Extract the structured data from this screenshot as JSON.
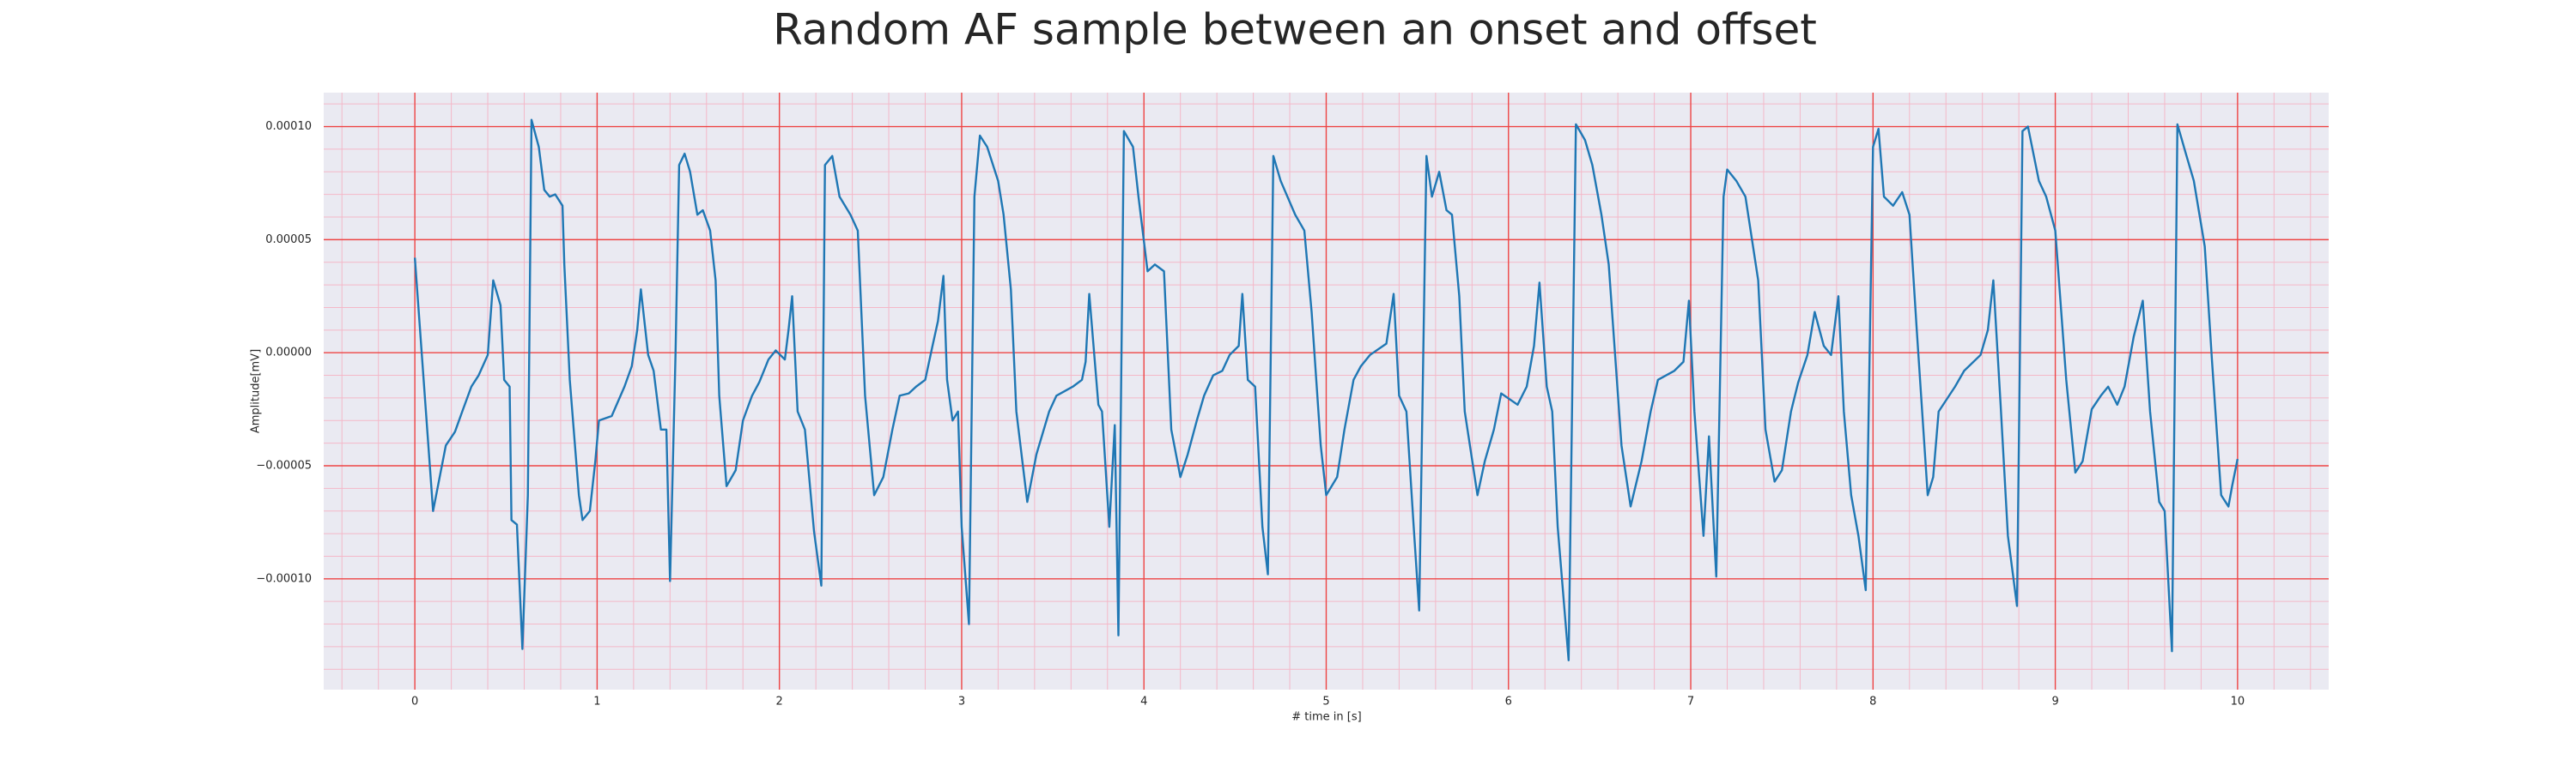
{
  "chart_data": {
    "type": "line",
    "title": "Random AF sample between an onset and offset",
    "x_label": "# time in [s]",
    "y_label": "Amplitude[mV]",
    "color": "#1f77b4",
    "grid": true,
    "minor_grid": true,
    "xlim": [
      -0.5,
      10.5
    ],
    "xticks": [
      0,
      1,
      2,
      3,
      4,
      5,
      6,
      7,
      8,
      9,
      10
    ],
    "ylim": [
      -0.000149,
      0.000115
    ],
    "yticks": [
      {
        "value": -0.0001,
        "label": "−0.00010"
      },
      {
        "value": -5e-05,
        "label": "−0.00005"
      },
      {
        "value": 0,
        "label": "0.00000"
      },
      {
        "value": 5e-05,
        "label": "0.00005"
      },
      {
        "value": 0.0001,
        "label": "0.00010"
      }
    ],
    "x": [
      0.0,
      0.1,
      0.17,
      0.22,
      0.26,
      0.31,
      0.35,
      0.4,
      0.43,
      0.47,
      0.49,
      0.52,
      0.53,
      0.56,
      0.59,
      0.62,
      0.64,
      0.68,
      0.71,
      0.74,
      0.77,
      0.81,
      0.82,
      0.85,
      0.9,
      0.92,
      0.96,
      0.99,
      1.01,
      1.08,
      1.15,
      1.19,
      1.22,
      1.24,
      1.28,
      1.31,
      1.35,
      1.38,
      1.4,
      1.43,
      1.45,
      1.48,
      1.51,
      1.55,
      1.58,
      1.62,
      1.65,
      1.67,
      1.71,
      1.76,
      1.8,
      1.85,
      1.89,
      1.94,
      1.98,
      2.03,
      2.05,
      2.07,
      2.1,
      2.14,
      2.19,
      2.23,
      2.25,
      2.29,
      2.33,
      2.39,
      2.43,
      2.47,
      2.52,
      2.57,
      2.62,
      2.66,
      2.71,
      2.75,
      2.8,
      2.84,
      2.87,
      2.9,
      2.92,
      2.95,
      2.98,
      3.0,
      3.04,
      3.07,
      3.1,
      3.14,
      3.2,
      3.23,
      3.27,
      3.3,
      3.36,
      3.41,
      3.48,
      3.52,
      3.61,
      3.66,
      3.68,
      3.7,
      3.75,
      3.77,
      3.81,
      3.84,
      3.86,
      3.89,
      3.94,
      3.97,
      4.02,
      4.06,
      4.11,
      4.15,
      4.2,
      4.24,
      4.29,
      4.33,
      4.38,
      4.43,
      4.47,
      4.52,
      4.54,
      4.57,
      4.61,
      4.65,
      4.68,
      4.71,
      4.75,
      4.83,
      4.88,
      4.92,
      4.97,
      5.0,
      5.06,
      5.1,
      5.15,
      5.19,
      5.24,
      5.33,
      5.37,
      5.4,
      5.44,
      5.48,
      5.51,
      5.55,
      5.58,
      5.62,
      5.66,
      5.69,
      5.73,
      5.76,
      5.83,
      5.87,
      5.92,
      5.96,
      6.05,
      6.1,
      6.14,
      6.17,
      6.21,
      6.24,
      6.27,
      6.33,
      6.37,
      6.42,
      6.46,
      6.51,
      6.55,
      6.62,
      6.67,
      6.73,
      6.78,
      6.82,
      6.91,
      6.96,
      6.99,
      7.02,
      7.07,
      7.1,
      7.14,
      7.18,
      7.2,
      7.25,
      7.3,
      7.37,
      7.41,
      7.46,
      7.5,
      7.55,
      7.59,
      7.64,
      7.68,
      7.73,
      7.77,
      7.81,
      7.84,
      7.88,
      7.92,
      7.96,
      8.0,
      8.03,
      8.06,
      8.11,
      8.16,
      8.2,
      8.24,
      8.3,
      8.33,
      8.36,
      8.45,
      8.5,
      8.59,
      8.63,
      8.66,
      8.7,
      8.74,
      8.79,
      8.82,
      8.85,
      8.91,
      8.95,
      9.0,
      9.06,
      9.11,
      9.15,
      9.2,
      9.25,
      9.29,
      9.34,
      9.38,
      9.43,
      9.48,
      9.52,
      9.57,
      9.6,
      9.64,
      9.67,
      9.72,
      9.76,
      9.82,
      9.86,
      9.91,
      9.95,
      9.97,
      10.0
    ],
    "values": [
      4.2e-05,
      -7e-05,
      -4.1e-05,
      -3.5e-05,
      -2.6e-05,
      -1.5e-05,
      -1e-05,
      -1e-06,
      3.2e-05,
      2.1e-05,
      -1.2e-05,
      -1.5e-05,
      -7.4e-05,
      -7.6e-05,
      -0.000131,
      -6.3e-05,
      0.000103,
      9.1e-05,
      7.2e-05,
      6.9e-05,
      7e-05,
      6.5e-05,
      3.9e-05,
      -1.2e-05,
      -6.3e-05,
      -7.4e-05,
      -7e-05,
      -4.8e-05,
      -3e-05,
      -2.8e-05,
      -1.5e-05,
      -6e-06,
      1e-05,
      2.8e-05,
      -1e-06,
      -8e-06,
      -3.4e-05,
      -3.4e-05,
      -0.000101,
      -1e-06,
      8.3e-05,
      8.8e-05,
      8e-05,
      6.1e-05,
      6.3e-05,
      5.4e-05,
      3.2e-05,
      -1.9e-05,
      -5.9e-05,
      -5.2e-05,
      -3e-05,
      -1.9e-05,
      -1.3e-05,
      -3e-06,
      1e-06,
      -3e-06,
      1e-05,
      2.5e-05,
      -2.6e-05,
      -3.4e-05,
      -7.9e-05,
      -0.000103,
      8.3e-05,
      8.7e-05,
      6.9e-05,
      6.1e-05,
      5.4e-05,
      -1.9e-05,
      -6.3e-05,
      -5.5e-05,
      -3.4e-05,
      -1.9e-05,
      -1.8e-05,
      -1.5e-05,
      -1.2e-05,
      3e-06,
      1.4e-05,
      3.4e-05,
      -1.2e-05,
      -3e-05,
      -2.6e-05,
      -7.7e-05,
      -0.00012,
      6.9e-05,
      9.6e-05,
      9.1e-05,
      7.6e-05,
      6.1e-05,
      2.8e-05,
      -2.6e-05,
      -6.6e-05,
      -4.5e-05,
      -2.6e-05,
      -1.9e-05,
      -1.5e-05,
      -1.2e-05,
      -4e-06,
      2.6e-05,
      -2.3e-05,
      -2.6e-05,
      -7.7e-05,
      -3.2e-05,
      -0.000125,
      9.8e-05,
      9.1e-05,
      6.9e-05,
      3.6e-05,
      3.9e-05,
      3.6e-05,
      -3.4e-05,
      -5.5e-05,
      -4.5e-05,
      -3e-05,
      -1.9e-05,
      -1e-05,
      -8e-06,
      -1e-06,
      3e-06,
      2.6e-05,
      -1.2e-05,
      -1.5e-05,
      -7.7e-05,
      -9.8e-05,
      8.7e-05,
      7.6e-05,
      6.1e-05,
      5.4e-05,
      1.8e-05,
      -4.1e-05,
      -6.3e-05,
      -5.5e-05,
      -3.4e-05,
      -1.2e-05,
      -6e-06,
      -1e-06,
      4e-06,
      2.6e-05,
      -1.9e-05,
      -2.6e-05,
      -7.7e-05,
      -0.000114,
      8.7e-05,
      6.9e-05,
      8e-05,
      6.3e-05,
      6.1e-05,
      2.5e-05,
      -2.6e-05,
      -6.3e-05,
      -4.8e-05,
      -3.4e-05,
      -1.8e-05,
      -2.3e-05,
      -1.5e-05,
      3e-06,
      3.1e-05,
      -1.5e-05,
      -2.6e-05,
      -7.7e-05,
      -0.000136,
      0.000101,
      9.4e-05,
      8.3e-05,
      6.1e-05,
      3.9e-05,
      -4.1e-05,
      -6.8e-05,
      -4.8e-05,
      -2.6e-05,
      -1.2e-05,
      -8e-06,
      -4e-06,
      2.3e-05,
      -2.6e-05,
      -8.1e-05,
      -3.7e-05,
      -9.9e-05,
      6.9e-05,
      8.1e-05,
      7.6e-05,
      6.9e-05,
      3.2e-05,
      -3.4e-05,
      -5.7e-05,
      -5.2e-05,
      -2.6e-05,
      -1.3e-05,
      -1e-06,
      1.8e-05,
      3e-06,
      -1e-06,
      2.5e-05,
      -2.6e-05,
      -6.3e-05,
      -8.1e-05,
      -0.000105,
      9.1e-05,
      9.9e-05,
      6.9e-05,
      6.5e-05,
      7.1e-05,
      6.1e-05,
      1e-05,
      -6.3e-05,
      -5.5e-05,
      -2.6e-05,
      -1.5e-05,
      -8e-06,
      -1e-06,
      1e-05,
      3.2e-05,
      -2.3e-05,
      -8.1e-05,
      -0.000112,
      9.8e-05,
      0.0001,
      7.6e-05,
      6.9e-05,
      5.4e-05,
      -1.2e-05,
      -5.3e-05,
      -4.8e-05,
      -2.5e-05,
      -1.9e-05,
      -1.5e-05,
      -2.3e-05,
      -1.5e-05,
      7e-06,
      2.3e-05,
      -2.6e-05,
      -6.6e-05,
      -7e-05,
      -0.000132,
      0.000101,
      8.7e-05,
      7.6e-05,
      4.7e-05,
      -4e-06,
      -6.3e-05,
      -6.8e-05,
      -5.9e-05,
      -4.7e-05
    ]
  }
}
